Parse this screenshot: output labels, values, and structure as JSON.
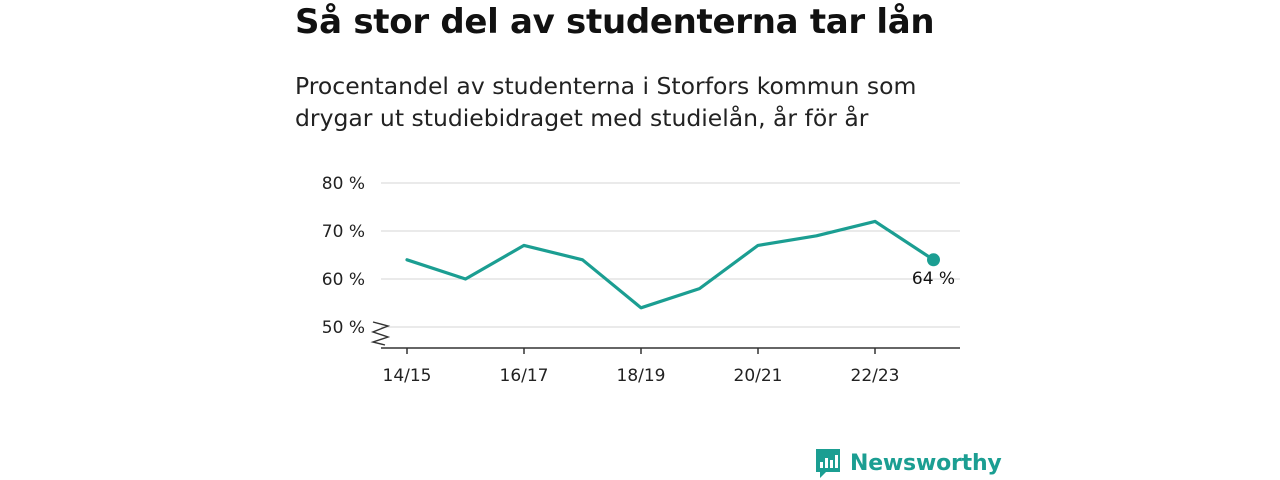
{
  "header": {
    "title": "Så stor del av studenterna tar lån",
    "subtitle": "Procentandel av studenterna i Storfors kommun som drygar ut studiebidraget med studielån, år för år"
  },
  "chart_data": {
    "type": "line",
    "title": "Så stor del av studenterna tar lån",
    "subtitle": "Procentandel av studenterna i Storfors kommun som drygar ut studiebidraget med studielån, år för år",
    "x": [
      "14/15",
      "15/16",
      "16/17",
      "17/18",
      "18/19",
      "19/20",
      "20/21",
      "21/22",
      "22/23",
      "23/24"
    ],
    "series": [
      {
        "values": [
          64,
          60,
          67,
          64,
          54,
          58,
          67,
          69,
          72,
          64
        ]
      }
    ],
    "x_tick_labels": [
      "14/15",
      "16/17",
      "18/19",
      "20/21",
      "22/23"
    ],
    "y_tick_labels": [
      "50 %",
      "60 %",
      "70 %",
      "80 %"
    ],
    "y_ticks": [
      50,
      60,
      70,
      80
    ],
    "ylim": [
      50,
      80
    ],
    "y_axis_break": true,
    "grid": true,
    "last_point_label": "64 %",
    "line_color": "#1b9e92"
  },
  "brand": {
    "name": "Newsworthy",
    "color": "#1b9e92"
  }
}
